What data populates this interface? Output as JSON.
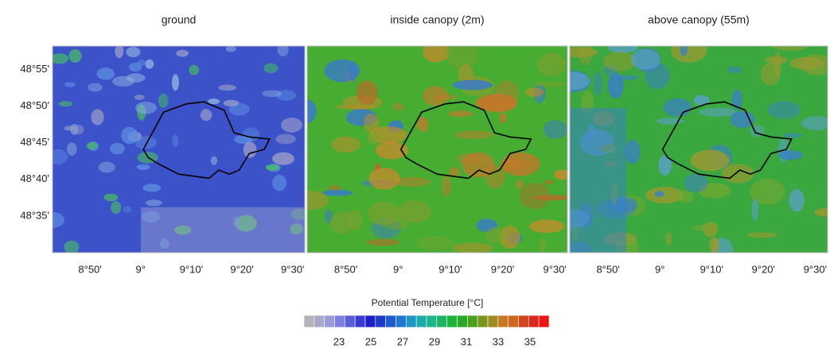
{
  "chart_data": {
    "type": "map",
    "xlim": [
      8.71,
      9.54
    ],
    "ylim": [
      48.5,
      48.97
    ],
    "yticks": [
      {
        "value": 48.9167,
        "label": "48°55'"
      },
      {
        "value": 48.8333,
        "label": "48°50'"
      },
      {
        "value": 48.75,
        "label": "48°45'"
      },
      {
        "value": 48.6667,
        "label": "48°40'"
      },
      {
        "value": 48.5833,
        "label": "48°35'"
      }
    ],
    "xticks": [
      {
        "value": 8.8333,
        "label": "8°50'"
      },
      {
        "value": 9,
        "label": "9°"
      },
      {
        "value": 9.1667,
        "label": "9°10'"
      },
      {
        "value": 9.3333,
        "label": "9°20'"
      },
      {
        "value": 9.5,
        "label": "9°30'"
      }
    ],
    "panels": [
      {
        "title": "ground",
        "color": "#3b52c9"
      },
      {
        "title": "inside canopy (2m)",
        "color": "#46ad32"
      },
      {
        "title": "above canopy (55m)",
        "color": "#3aa83e"
      }
    ],
    "colorbar": {
      "title": "Potential  Temperature [°C]",
      "clim": [
        20.8,
        36.2
      ],
      "ticks": [
        23,
        25,
        27,
        29,
        31,
        33,
        35
      ],
      "colors": [
        "#b4b4b4",
        "#a8a8c8",
        "#9a9ad8",
        "#7e7ee0",
        "#5c5cd8",
        "#3a3ad0",
        "#1e1ec8",
        "#1c3ac8",
        "#1e5ad2",
        "#1e78d2",
        "#1e96c8",
        "#1eaaaa",
        "#1eb48c",
        "#1eb464",
        "#1eb43c",
        "#28aa28",
        "#4ba01e",
        "#78961e",
        "#a08c1e",
        "#c8781e",
        "#d2641e",
        "#d2461e",
        "#dc281e",
        "#f01414"
      ]
    }
  }
}
